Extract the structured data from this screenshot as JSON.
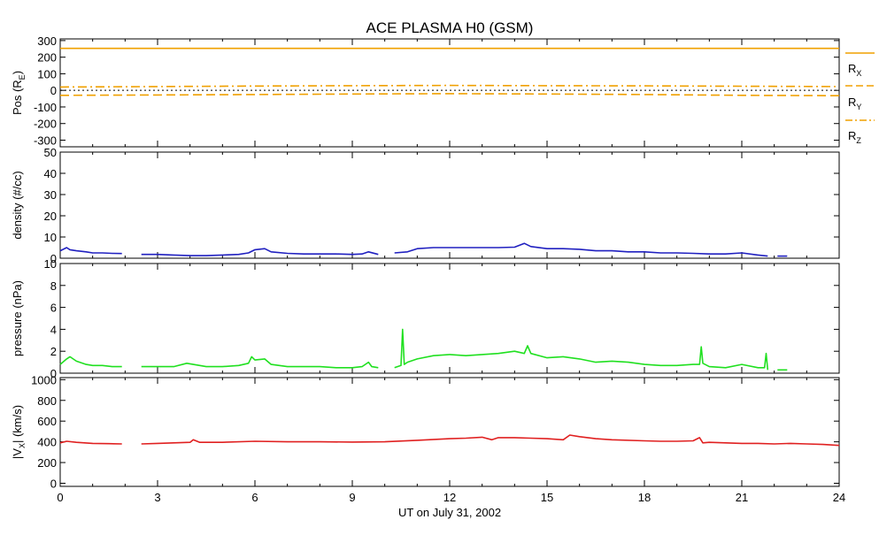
{
  "chart_data": {
    "title": "ACE PLASMA H0 (GSM)",
    "xlabel": "UT on July 31, 2002",
    "x_ticks": [
      0,
      3,
      6,
      9,
      12,
      15,
      18,
      21,
      24
    ],
    "x_range": [
      0,
      24
    ],
    "panels": [
      {
        "key": "pos",
        "type": "line",
        "ylabel_main": "Pos (R",
        "ylabel_sub": "E",
        "ylabel_tail": ")",
        "ylim": [
          -340,
          310
        ],
        "y_ticks": [
          300,
          200,
          100,
          0,
          -100,
          -200,
          -300
        ],
        "zero_line": true,
        "series": [
          {
            "name": "R",
            "sub": "X",
            "color": "#f0a000",
            "style": "solid",
            "x": [
              0,
              6,
              12,
              18,
              24
            ],
            "y": [
              253,
              253,
              253,
              253,
              253
            ]
          },
          {
            "name": "R",
            "sub": "Y",
            "color": "#f0a000",
            "style": "dash",
            "x": [
              0,
              3,
              6,
              9,
              12,
              15,
              18,
              21,
              24
            ],
            "y": [
              -30,
              -28,
              -25,
              -22,
              -20,
              -22,
              -25,
              -30,
              -32
            ]
          },
          {
            "name": "R",
            "sub": "Z",
            "color": "#f0a000",
            "style": "dashdot",
            "x": [
              0,
              3,
              6,
              9,
              12,
              15,
              18,
              21,
              24
            ],
            "y": [
              20,
              23,
              26,
              28,
              30,
              28,
              27,
              25,
              23
            ]
          }
        ]
      },
      {
        "key": "density",
        "type": "line",
        "ylabel_main": "density (#/cc)",
        "ylim": [
          0,
          50
        ],
        "y_ticks": [
          0,
          10,
          20,
          30,
          40,
          50
        ],
        "series": [
          {
            "name": "density",
            "color": "#2020c0",
            "segments": [
              {
                "x": [
                  0,
                  0.2,
                  0.3,
                  0.5,
                  0.8,
                  1.0,
                  1.3,
                  1.6,
                  1.9
                ],
                "y": [
                  3.5,
                  5,
                  4,
                  3.5,
                  3,
                  2.5,
                  2.5,
                  2.3,
                  2.2
                ]
              },
              {
                "x": [
                  2.5,
                  3.0,
                  3.5,
                  4.0,
                  4.5,
                  5.0,
                  5.5,
                  5.8,
                  6.0,
                  6.3,
                  6.5,
                  7.0,
                  7.5,
                  8.0,
                  8.5,
                  9.0,
                  9.3,
                  9.5,
                  9.8
                ],
                "y": [
                  1.8,
                  1.8,
                  1.5,
                  1.2,
                  1.2,
                  1.5,
                  1.8,
                  2.5,
                  4,
                  4.5,
                  3,
                  2.3,
                  2,
                  2,
                  2,
                  1.8,
                  2,
                  3,
                  1.8
                ]
              },
              {
                "x": [
                  10.3,
                  10.7,
                  11.0,
                  11.5,
                  12.0,
                  12.5,
                  13.0,
                  13.5,
                  14.0,
                  14.3,
                  14.5,
                  15.0,
                  15.5,
                  16.0,
                  16.5,
                  17.0,
                  17.5,
                  18.0,
                  18.5,
                  19.0,
                  19.5,
                  20.0,
                  20.5,
                  21.0,
                  21.5,
                  21.8
                ],
                "y": [
                  2.5,
                  3,
                  4.5,
                  5,
                  5,
                  5,
                  5,
                  5,
                  5.2,
                  7,
                  5.5,
                  4.5,
                  4.5,
                  4.2,
                  3.5,
                  3.5,
                  3,
                  3,
                  2.5,
                  2.5,
                  2.3,
                  2,
                  2,
                  2.5,
                  1.5,
                  1
                ]
              },
              {
                "x": [
                  22.1,
                  22.4
                ],
                "y": [
                  1,
                  1
                ]
              }
            ]
          }
        ]
      },
      {
        "key": "pressure",
        "type": "line",
        "ylabel_main": "pressure (nPa)",
        "ylim": [
          0,
          10
        ],
        "y_ticks": [
          0,
          2,
          4,
          6,
          8,
          10
        ],
        "series": [
          {
            "name": "pressure",
            "color": "#20e020",
            "segments": [
              {
                "x": [
                  0,
                  0.2,
                  0.3,
                  0.5,
                  0.8,
                  1.0,
                  1.3,
                  1.6,
                  1.9
                ],
                "y": [
                  0.8,
                  1.3,
                  1.5,
                  1.1,
                  0.8,
                  0.7,
                  0.7,
                  0.6,
                  0.6
                ]
              },
              {
                "x": [
                  2.5,
                  3.0,
                  3.5,
                  3.9,
                  4.1,
                  4.5,
                  5.0,
                  5.5,
                  5.8,
                  5.9,
                  6.0,
                  6.3,
                  6.5,
                  7.0,
                  7.5,
                  8.0,
                  8.5,
                  9.0,
                  9.3,
                  9.5,
                  9.6,
                  9.8
                ],
                "y": [
                  0.6,
                  0.6,
                  0.6,
                  0.9,
                  0.8,
                  0.6,
                  0.6,
                  0.7,
                  0.9,
                  1.5,
                  1.2,
                  1.3,
                  0.8,
                  0.6,
                  0.6,
                  0.6,
                  0.5,
                  0.5,
                  0.6,
                  1.0,
                  0.6,
                  0.5
                ]
              },
              {
                "x": [
                  10.3,
                  10.5,
                  10.55,
                  10.6,
                  10.7,
                  11.0,
                  11.5,
                  12.0,
                  12.5,
                  13.0,
                  13.5,
                  14.0,
                  14.3,
                  14.4,
                  14.5,
                  15.0,
                  15.5,
                  16.0,
                  16.5,
                  17.0,
                  17.5,
                  18.0,
                  18.5,
                  19.0,
                  19.5,
                  19.7,
                  19.75,
                  19.8,
                  20.0,
                  20.5,
                  21.0,
                  21.5,
                  21.7,
                  21.75,
                  21.8
                ],
                "y": [
                  0.5,
                  0.7,
                  4.0,
                  0.8,
                  1.0,
                  1.3,
                  1.6,
                  1.7,
                  1.6,
                  1.7,
                  1.8,
                  2.0,
                  1.8,
                  2.5,
                  1.8,
                  1.4,
                  1.5,
                  1.3,
                  1.0,
                  1.1,
                  1.0,
                  0.8,
                  0.7,
                  0.7,
                  0.8,
                  0.8,
                  2.4,
                  0.9,
                  0.6,
                  0.5,
                  0.8,
                  0.5,
                  0.5,
                  1.8,
                  0.3
                ]
              },
              {
                "x": [
                  22.1,
                  22.4
                ],
                "y": [
                  0.3,
                  0.3
                ]
              }
            ]
          }
        ]
      },
      {
        "key": "vx",
        "type": "line",
        "ylabel_main": "|V",
        "ylabel_sub": "X",
        "ylabel_tail": "| (km/s)",
        "ylim": [
          -30,
          1020
        ],
        "y_ticks": [
          0,
          200,
          400,
          600,
          800,
          1000
        ],
        "series": [
          {
            "name": "|Vx|",
            "color": "#e02020",
            "segments": [
              {
                "x": [
                  0,
                  0.2,
                  0.5,
                  1.0,
                  1.5,
                  1.9
                ],
                "y": [
                  390,
                  405,
                  395,
                  385,
                  382,
                  380
                ]
              },
              {
                "x": [
                  2.5,
                  3.0,
                  3.5,
                  4.0,
                  4.1,
                  4.3,
                  5.0,
                  6.0,
                  7.0,
                  8.0,
                  9.0,
                  10.0,
                  11.0,
                  12.0,
                  12.5,
                  13.0,
                  13.3,
                  13.5,
                  14.0,
                  14.5,
                  15.0,
                  15.5,
                  15.7,
                  16.0,
                  16.5,
                  17.0,
                  18.0,
                  18.5,
                  19.0,
                  19.5,
                  19.7,
                  19.8,
                  20.0,
                  20.5,
                  21.0,
                  21.5,
                  22.0,
                  22.5,
                  23.0,
                  23.5,
                  24.0
                ],
                "y": [
                  380,
                  385,
                  390,
                  395,
                  420,
                  395,
                  395,
                  405,
                  400,
                  400,
                  398,
                  400,
                  415,
                  430,
                  435,
                  445,
                  420,
                  440,
                  440,
                  435,
                  430,
                  420,
                  465,
                  450,
                  430,
                  420,
                  410,
                  405,
                  405,
                  410,
                  440,
                  390,
                  395,
                  390,
                  385,
                  385,
                  380,
                  385,
                  380,
                  375,
                  365
                ]
              }
            ]
          }
        ]
      }
    ]
  }
}
